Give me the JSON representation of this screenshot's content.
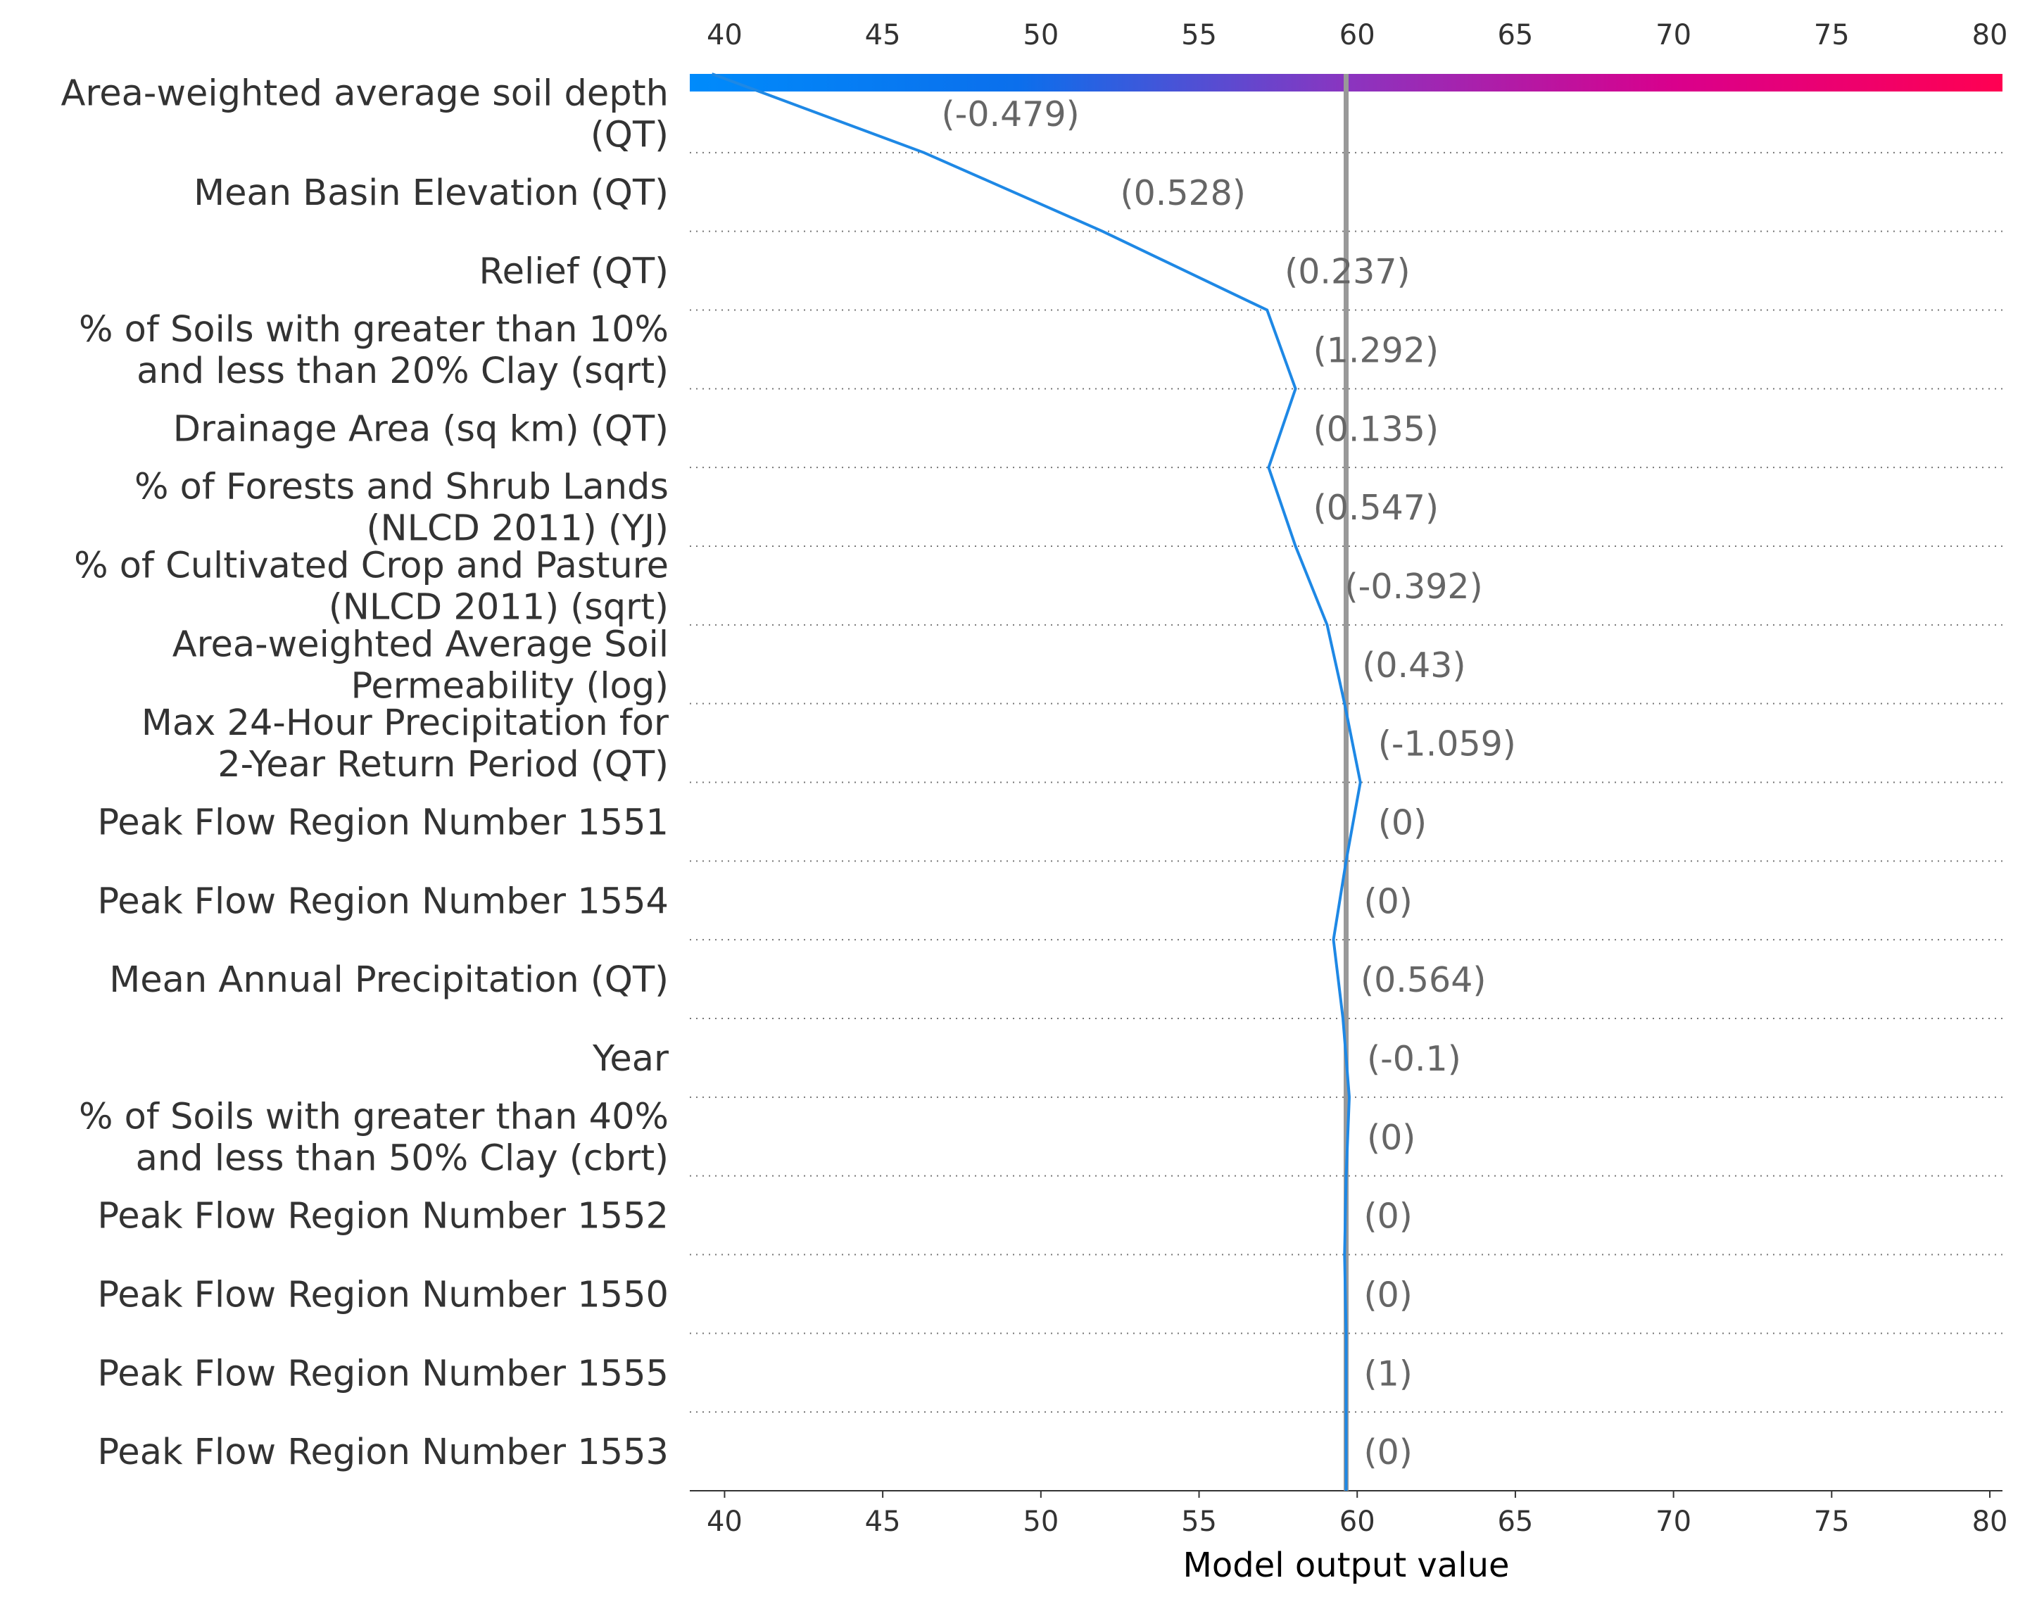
{
  "chart_data": {
    "type": "line",
    "title": "",
    "xlabel": "Model output value",
    "xlim": [
      38.9,
      80.4
    ],
    "xticks": [
      "40",
      "45",
      "50",
      "55",
      "60",
      "65",
      "70",
      "75",
      "80"
    ],
    "base_value": 59.65,
    "colorbar": {
      "range": [
        38.9,
        80.4
      ],
      "colors": [
        "#008bfb",
        "#ff0052"
      ]
    },
    "features": [
      {
        "label": [
          "Area-weighted average soil depth",
          "(QT)"
        ],
        "value": "(-0.479)"
      },
      {
        "label": [
          "Mean Basin Elevation (QT)"
        ],
        "value": "(0.528)"
      },
      {
        "label": [
          "Relief (QT)"
        ],
        "value": "(0.237)"
      },
      {
        "label": [
          "% of Soils with greater than 10%",
          "and less than 20% Clay (sqrt)"
        ],
        "value": "(1.292)"
      },
      {
        "label": [
          "Drainage Area (sq km) (QT)"
        ],
        "value": "(0.135)"
      },
      {
        "label": [
          "% of Forests and Shrub Lands",
          "(NLCD 2011) (YJ)"
        ],
        "value": "(0.547)"
      },
      {
        "label": [
          "% of Cultivated Crop and Pasture",
          "(NLCD 2011) (sqrt)"
        ],
        "value": "(-0.392)"
      },
      {
        "label": [
          "Area-weighted Average Soil",
          "Permeability (log)"
        ],
        "value": "(0.43)"
      },
      {
        "label": [
          "Max 24-Hour Precipitation for",
          "2-Year Return Period (QT)"
        ],
        "value": "(-1.059)"
      },
      {
        "label": [
          "Peak Flow Region Number 1551"
        ],
        "value": "(0)"
      },
      {
        "label": [
          "Peak Flow Region Number 1554"
        ],
        "value": "(0)"
      },
      {
        "label": [
          "Mean Annual Precipitation (QT)"
        ],
        "value": "(0.564)"
      },
      {
        "label": [
          "Year"
        ],
        "value": "(-0.1)"
      },
      {
        "label": [
          "% of Soils with greater than 40%",
          "and less than 50% Clay (cbrt)"
        ],
        "value": "(0)"
      },
      {
        "label": [
          "Peak Flow Region Number 1552"
        ],
        "value": "(0)"
      },
      {
        "label": [
          "Peak Flow Region Number 1550"
        ],
        "value": "(0)"
      },
      {
        "label": [
          "Peak Flow Region Number 1555"
        ],
        "value": "(1)"
      },
      {
        "label": [
          "Peak Flow Region Number 1553"
        ],
        "value": "(0)"
      }
    ],
    "decision_path": [
      39.6,
      46.3,
      51.95,
      57.15,
      58.05,
      57.2,
      58.05,
      59.05,
      59.6,
      60.1,
      59.65,
      59.25,
      59.55,
      59.75,
      59.65,
      59.6,
      59.65,
      59.65,
      59.65
    ],
    "line_color": "#1e88e5",
    "base_line_color": "#999999"
  }
}
